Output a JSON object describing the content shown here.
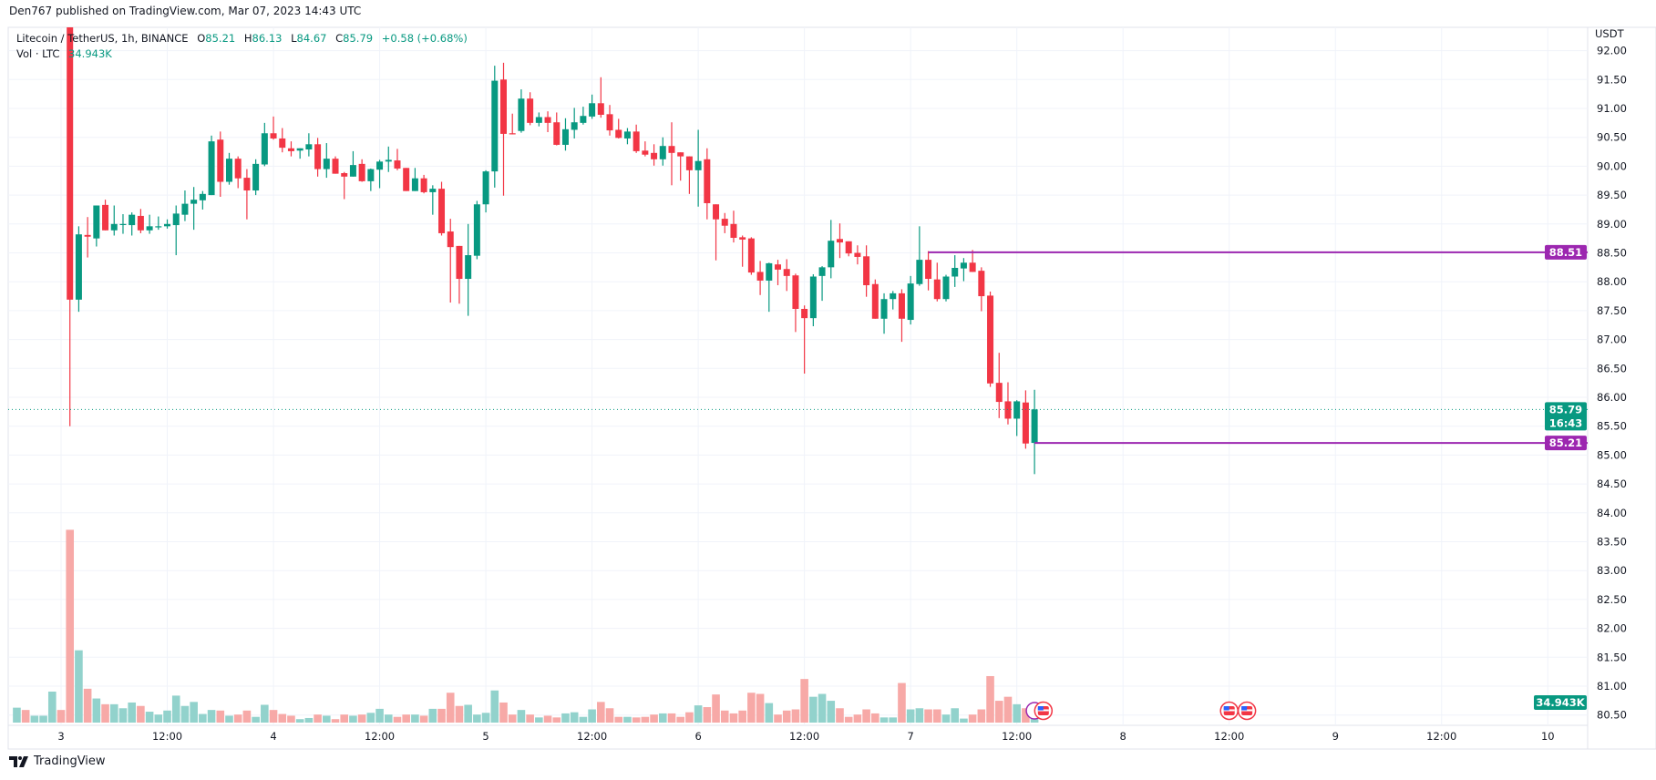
{
  "header": {
    "published": "Den767 published on TradingView.com, Mar 07, 2023 14:43 UTC"
  },
  "legend": {
    "symbol": "Litecoin / TetherUS, 1h, BINANCE",
    "o_label": "O",
    "o_value": "85.21",
    "h_label": "H",
    "h_value": "86.13",
    "l_label": "L",
    "l_value": "84.67",
    "c_label": "C",
    "c_value": "85.79",
    "change": "+0.58 (+0.68%)",
    "vol_label": "Vol · LTC",
    "vol_value": "34.943K"
  },
  "price_axis": {
    "unit": "USDT",
    "labels": [
      "92.00",
      "91.50",
      "91.00",
      "90.50",
      "90.00",
      "89.50",
      "89.00",
      "88.50",
      "88.00",
      "87.50",
      "87.00",
      "86.50",
      "86.00",
      "85.50",
      "85.00",
      "84.50",
      "84.00",
      "83.50",
      "83.00",
      "82.50",
      "82.00",
      "81.50",
      "81.00",
      "80.50"
    ]
  },
  "tags": {
    "level_high": "88.51",
    "last_price": "85.79",
    "countdown": "16:43",
    "level_low": "85.21",
    "volume": "34.943K"
  },
  "footer": {
    "brand": "TradingView"
  },
  "colors": {
    "up": "#089981",
    "down": "#f23645",
    "volume_up": "#92d2cc",
    "volume_down": "#f7a9a7",
    "level_line": "#9c27b0",
    "grid": "#f0f3fa"
  },
  "icons": [
    "tradingview-logo-icon",
    "us-flag-event-icon",
    "clock-event-icon"
  ],
  "chart_data": {
    "type": "candlestick",
    "symbol": "Litecoin / TetherUS",
    "interval": "1h",
    "exchange": "BINANCE",
    "ylim": [
      80.5,
      92.0
    ],
    "grid": true,
    "x_ticks": [
      {
        "t": "2023-03-03 00:00",
        "label": "3"
      },
      {
        "t": "2023-03-03 12:00",
        "label": "12:00"
      },
      {
        "t": "2023-03-04 00:00",
        "label": "4"
      },
      {
        "t": "2023-03-04 12:00",
        "label": "12:00"
      },
      {
        "t": "2023-03-05 00:00",
        "label": "5"
      },
      {
        "t": "2023-03-05 12:00",
        "label": "12:00"
      },
      {
        "t": "2023-03-06 00:00",
        "label": "6"
      },
      {
        "t": "2023-03-06 12:00",
        "label": "12:00"
      },
      {
        "t": "2023-03-07 00:00",
        "label": "7"
      },
      {
        "t": "2023-03-07 12:00",
        "label": "12:00"
      },
      {
        "t": "2023-03-08 00:00",
        "label": "8"
      },
      {
        "t": "2023-03-08 12:00",
        "label": "12:00"
      },
      {
        "t": "2023-03-09 00:00",
        "label": "9"
      },
      {
        "t": "2023-03-09 12:00",
        "label": "12:00"
      },
      {
        "t": "2023-03-10 00:00",
        "label": "10"
      }
    ],
    "horizontal_levels": [
      {
        "price": 88.51,
        "from": "2023-03-07 02:00"
      },
      {
        "price": 85.21,
        "from": "2023-03-07 14:00"
      }
    ],
    "last_price": 85.79,
    "events": [
      {
        "t": "2023-03-07 14:00",
        "type": "clock"
      },
      {
        "t": "2023-03-07 15:00",
        "type": "us-flag"
      },
      {
        "t": "2023-03-08 12:00",
        "type": "us-flag"
      },
      {
        "t": "2023-03-08 14:00",
        "type": "us-flag"
      }
    ],
    "volume_only": [
      {
        "t": "2023-03-02 19:00",
        "v": 26,
        "dir": "up"
      },
      {
        "t": "2023-03-02 20:00",
        "v": 22,
        "dir": "down"
      },
      {
        "t": "2023-03-02 21:00",
        "v": 12,
        "dir": "up"
      },
      {
        "t": "2023-03-02 22:00",
        "v": 12,
        "dir": "up"
      },
      {
        "t": "2023-03-02 23:00",
        "v": 54,
        "dir": "up"
      },
      {
        "t": "2023-03-03 00:00",
        "v": 22,
        "dir": "down"
      }
    ],
    "columns": [
      "time",
      "open",
      "high",
      "low",
      "close",
      "volume_k"
    ],
    "candles": [
      [
        "2023-03-03 01:00",
        93.4,
        93.6,
        85.5,
        87.69,
        336
      ],
      [
        "2023-03-03 02:00",
        87.69,
        88.96,
        87.48,
        88.82,
        126
      ],
      [
        "2023-03-03 03:00",
        88.81,
        89.12,
        88.42,
        88.78,
        59
      ],
      [
        "2023-03-03 04:00",
        88.75,
        89.32,
        88.61,
        89.32,
        42
      ],
      [
        "2023-03-03 05:00",
        89.33,
        89.42,
        88.89,
        88.89,
        32
      ],
      [
        "2023-03-03 06:00",
        88.89,
        89.32,
        88.8,
        89.0,
        32
      ],
      [
        "2023-03-03 07:00",
        88.99,
        89.17,
        88.83,
        89.0,
        25
      ],
      [
        "2023-03-03 08:00",
        88.98,
        89.2,
        88.8,
        89.16,
        35
      ],
      [
        "2023-03-03 09:00",
        89.14,
        89.26,
        88.84,
        88.89,
        29
      ],
      [
        "2023-03-03 10:00",
        88.89,
        89.16,
        88.83,
        88.96,
        19
      ],
      [
        "2023-03-03 11:00",
        88.95,
        89.13,
        88.9,
        88.96,
        14
      ],
      [
        "2023-03-03 12:00",
        88.96,
        89.08,
        88.92,
        89.0,
        21
      ],
      [
        "2023-03-03 13:00",
        88.98,
        89.32,
        88.46,
        89.18,
        47
      ],
      [
        "2023-03-03 14:00",
        89.16,
        89.58,
        89.05,
        89.35,
        29
      ],
      [
        "2023-03-03 15:00",
        89.35,
        89.64,
        88.9,
        89.42,
        36
      ],
      [
        "2023-03-03 16:00",
        89.41,
        89.57,
        89.25,
        89.52,
        15
      ],
      [
        "2023-03-03 17:00",
        89.5,
        90.53,
        89.5,
        90.43,
        22
      ],
      [
        "2023-03-03 18:00",
        90.46,
        90.6,
        89.47,
        89.73,
        21
      ],
      [
        "2023-03-03 19:00",
        89.73,
        90.23,
        89.68,
        90.13,
        12
      ],
      [
        "2023-03-03 20:00",
        90.13,
        90.17,
        89.62,
        89.79,
        14
      ],
      [
        "2023-03-03 21:00",
        89.8,
        89.95,
        89.08,
        89.58,
        21
      ],
      [
        "2023-03-03 22:00",
        89.58,
        90.12,
        89.5,
        90.04,
        10
      ],
      [
        "2023-03-03 23:00",
        90.03,
        90.75,
        90.0,
        90.57,
        31
      ],
      [
        "2023-03-04 00:00",
        90.57,
        90.86,
        90.46,
        90.48,
        22
      ],
      [
        "2023-03-04 01:00",
        90.48,
        90.66,
        90.24,
        90.32,
        15
      ],
      [
        "2023-03-04 02:00",
        90.31,
        90.43,
        90.17,
        90.26,
        12
      ],
      [
        "2023-03-04 03:00",
        90.27,
        90.31,
        90.13,
        90.31,
        6
      ],
      [
        "2023-03-04 04:00",
        90.29,
        90.57,
        90.17,
        90.38,
        8
      ],
      [
        "2023-03-04 05:00",
        90.38,
        90.49,
        89.82,
        89.95,
        14
      ],
      [
        "2023-03-04 06:00",
        89.95,
        90.4,
        89.8,
        90.13,
        12
      ],
      [
        "2023-03-04 07:00",
        90.13,
        90.17,
        89.87,
        89.87,
        6
      ],
      [
        "2023-03-04 08:00",
        89.88,
        89.9,
        89.43,
        89.82,
        14
      ],
      [
        "2023-03-04 09:00",
        89.82,
        90.26,
        89.82,
        90.02,
        12
      ],
      [
        "2023-03-04 10:00",
        90.04,
        90.12,
        89.73,
        89.74,
        14
      ],
      [
        "2023-03-04 11:00",
        89.74,
        89.96,
        89.57,
        89.95,
        17
      ],
      [
        "2023-03-04 12:00",
        89.94,
        90.11,
        89.62,
        90.08,
        24
      ],
      [
        "2023-03-04 13:00",
        90.08,
        90.34,
        89.9,
        90.11,
        14
      ],
      [
        "2023-03-04 14:00",
        90.1,
        90.3,
        89.93,
        89.96,
        10
      ],
      [
        "2023-03-04 15:00",
        89.97,
        89.97,
        89.57,
        89.57,
        14
      ],
      [
        "2023-03-04 16:00",
        89.57,
        89.97,
        89.57,
        89.79,
        14
      ],
      [
        "2023-03-04 17:00",
        89.79,
        89.85,
        89.53,
        89.55,
        12
      ],
      [
        "2023-03-04 18:00",
        89.55,
        89.67,
        89.16,
        89.61,
        24
      ],
      [
        "2023-03-04 19:00",
        89.61,
        89.73,
        88.8,
        88.84,
        24
      ],
      [
        "2023-03-04 20:00",
        88.87,
        89.09,
        87.64,
        88.6,
        52
      ],
      [
        "2023-03-04 21:00",
        88.62,
        88.62,
        87.62,
        88.05,
        29
      ],
      [
        "2023-03-04 22:00",
        88.05,
        89.0,
        87.41,
        88.46,
        31
      ],
      [
        "2023-03-04 23:00",
        88.45,
        89.4,
        88.39,
        89.34,
        14
      ],
      [
        "2023-03-05 00:00",
        89.34,
        89.93,
        89.2,
        89.91,
        17
      ],
      [
        "2023-03-05 01:00",
        89.91,
        91.74,
        89.63,
        91.48,
        56
      ],
      [
        "2023-03-05 02:00",
        91.5,
        91.79,
        89.49,
        90.56,
        35
      ],
      [
        "2023-03-05 03:00",
        90.57,
        90.91,
        90.55,
        90.56,
        14
      ],
      [
        "2023-03-05 04:00",
        90.61,
        91.33,
        90.58,
        91.17,
        22
      ],
      [
        "2023-03-05 05:00",
        91.17,
        91.28,
        90.71,
        90.75,
        14
      ],
      [
        "2023-03-05 06:00",
        90.75,
        90.93,
        90.69,
        90.85,
        9
      ],
      [
        "2023-03-05 07:00",
        90.85,
        90.95,
        90.59,
        90.75,
        12
      ],
      [
        "2023-03-05 08:00",
        90.76,
        90.93,
        90.36,
        90.37,
        9
      ],
      [
        "2023-03-05 09:00",
        90.37,
        90.83,
        90.27,
        90.64,
        16
      ],
      [
        "2023-03-05 10:00",
        90.63,
        91.01,
        90.48,
        90.76,
        18
      ],
      [
        "2023-03-05 11:00",
        90.75,
        91.03,
        90.72,
        90.87,
        10
      ],
      [
        "2023-03-05 12:00",
        90.86,
        91.24,
        90.82,
        91.09,
        23
      ],
      [
        "2023-03-05 13:00",
        91.09,
        91.54,
        90.84,
        90.89,
        36
      ],
      [
        "2023-03-05 14:00",
        90.9,
        91.06,
        90.53,
        90.62,
        25
      ],
      [
        "2023-03-05 15:00",
        90.63,
        90.82,
        90.48,
        90.49,
        10
      ],
      [
        "2023-03-05 16:00",
        90.48,
        90.66,
        90.38,
        90.6,
        10
      ],
      [
        "2023-03-05 17:00",
        90.6,
        90.72,
        90.23,
        90.26,
        9
      ],
      [
        "2023-03-05 18:00",
        90.27,
        90.43,
        90.17,
        90.2,
        10
      ],
      [
        "2023-03-05 19:00",
        90.23,
        90.38,
        90.01,
        90.12,
        14
      ],
      [
        "2023-03-05 20:00",
        90.12,
        90.5,
        90.01,
        90.35,
        16
      ],
      [
        "2023-03-05 21:00",
        90.35,
        90.76,
        89.67,
        90.23,
        16
      ],
      [
        "2023-03-05 22:00",
        90.24,
        90.24,
        89.75,
        90.17,
        10
      ],
      [
        "2023-03-05 23:00",
        90.17,
        90.17,
        89.52,
        89.93,
        18
      ],
      [
        "2023-03-06 00:00",
        89.93,
        90.63,
        89.3,
        90.09,
        30
      ],
      [
        "2023-03-06 01:00",
        90.12,
        90.31,
        89.08,
        89.36,
        27
      ],
      [
        "2023-03-06 02:00",
        89.34,
        89.34,
        88.37,
        89.08,
        49
      ],
      [
        "2023-03-06 03:00",
        89.09,
        89.19,
        88.84,
        88.97,
        21
      ],
      [
        "2023-03-06 04:00",
        89.0,
        89.23,
        88.68,
        88.76,
        16
      ],
      [
        "2023-03-06 05:00",
        88.77,
        88.8,
        88.26,
        88.73,
        21
      ],
      [
        "2023-03-06 06:00",
        88.75,
        88.77,
        88.12,
        88.16,
        52
      ],
      [
        "2023-03-06 07:00",
        88.17,
        88.36,
        87.77,
        88.02,
        50
      ],
      [
        "2023-03-06 08:00",
        88.02,
        88.33,
        87.48,
        88.32,
        34
      ],
      [
        "2023-03-06 09:00",
        88.3,
        88.38,
        87.94,
        88.21,
        14
      ],
      [
        "2023-03-06 10:00",
        88.22,
        88.39,
        87.84,
        88.1,
        21
      ],
      [
        "2023-03-06 11:00",
        88.11,
        88.14,
        87.13,
        87.53,
        23
      ],
      [
        "2023-03-06 12:00",
        87.53,
        87.59,
        86.41,
        87.37,
        76
      ],
      [
        "2023-03-06 13:00",
        87.37,
        88.13,
        87.23,
        88.09,
        45
      ],
      [
        "2023-03-06 14:00",
        88.1,
        88.27,
        87.67,
        88.25,
        50
      ],
      [
        "2023-03-06 15:00",
        88.25,
        89.07,
        88.06,
        88.71,
        38
      ],
      [
        "2023-03-06 16:00",
        88.74,
        89.01,
        88.41,
        88.68,
        25
      ],
      [
        "2023-03-06 17:00",
        88.7,
        88.7,
        88.44,
        88.49,
        10
      ],
      [
        "2023-03-06 18:00",
        88.5,
        88.63,
        88.3,
        88.43,
        14
      ],
      [
        "2023-03-06 19:00",
        88.44,
        88.63,
        87.74,
        87.94,
        23
      ],
      [
        "2023-03-06 20:00",
        87.96,
        88.04,
        87.36,
        87.36,
        16
      ],
      [
        "2023-03-06 21:00",
        87.36,
        87.8,
        87.1,
        87.7,
        9
      ],
      [
        "2023-03-06 22:00",
        87.7,
        87.84,
        87.52,
        87.8,
        9
      ],
      [
        "2023-03-06 23:00",
        87.8,
        87.87,
        86.96,
        87.36,
        69
      ],
      [
        "2023-03-07 00:00",
        87.34,
        88.1,
        87.26,
        87.97,
        23
      ],
      [
        "2023-03-07 01:00",
        87.96,
        88.96,
        87.93,
        88.38,
        25
      ],
      [
        "2023-03-07 02:00",
        88.38,
        88.53,
        87.85,
        88.05,
        23
      ],
      [
        "2023-03-07 03:00",
        88.04,
        88.33,
        87.66,
        87.7,
        23
      ],
      [
        "2023-03-07 04:00",
        87.7,
        88.12,
        87.66,
        88.09,
        14
      ],
      [
        "2023-03-07 05:00",
        88.09,
        88.46,
        87.91,
        88.24,
        25
      ],
      [
        "2023-03-07 06:00",
        88.23,
        88.41,
        88.01,
        88.33,
        7
      ],
      [
        "2023-03-07 07:00",
        88.33,
        88.55,
        88.17,
        88.17,
        14
      ],
      [
        "2023-03-07 08:00",
        88.19,
        88.25,
        87.49,
        87.75,
        23
      ],
      [
        "2023-03-07 09:00",
        87.76,
        87.83,
        86.18,
        86.24,
        81
      ],
      [
        "2023-03-07 10:00",
        86.25,
        86.77,
        85.64,
        85.92,
        38
      ],
      [
        "2023-03-07 11:00",
        85.93,
        86.26,
        85.53,
        85.63,
        45
      ],
      [
        "2023-03-07 12:00",
        85.63,
        85.95,
        85.33,
        85.93,
        32
      ],
      [
        "2023-03-07 13:00",
        85.91,
        86.12,
        85.11,
        85.2,
        25
      ],
      [
        "2023-03-07 14:00",
        85.21,
        86.13,
        84.67,
        85.79,
        34.943
      ]
    ]
  }
}
